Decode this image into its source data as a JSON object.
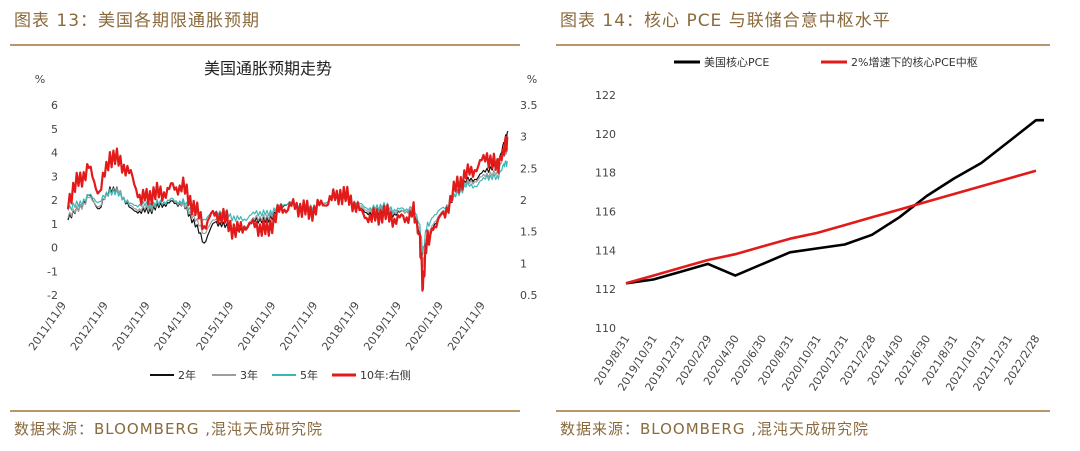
{
  "left": {
    "figure_title": "图表 13：美国各期限通胀预期",
    "source": "数据来源：BLOOMBERG ,混沌天成研究院"
  },
  "right": {
    "figure_title": "图表 14：核心 PCE 与联储合意中枢水平",
    "source": "数据来源：BLOOMBERG ,混沌天成研究院"
  },
  "colors": {
    "y2": "#111111",
    "y3": "#9e9e9e",
    "y5": "#3fb6b6",
    "y10": "#e21a1a",
    "pce": "#000000",
    "target": "#e21a1a",
    "accent": "#b8956a"
  },
  "chart_data": [
    {
      "type": "line",
      "title": "美国通胀预期走势",
      "ylabel": "%",
      "ylabel_right": "%",
      "ylim": [
        -2,
        6
      ],
      "ylim_right": [
        0.5,
        3.5
      ],
      "yticks": [
        "-2",
        "-1",
        "0",
        "1",
        "2",
        "3",
        "4",
        "5",
        "6"
      ],
      "yticks_right": [
        "0.5",
        "1",
        "1.5",
        "2",
        "2.5",
        "3",
        "3.5"
      ],
      "x_labels": [
        "2011/11/9",
        "2012/11/9",
        "2013/11/9",
        "2014/11/9",
        "2015/11/9",
        "2016/11/9",
        "2017/11/9",
        "2018/11/9",
        "2019/11/9",
        "2020/11/9",
        "2021/11/9"
      ],
      "x": [
        2011.75,
        2012.0,
        2012.25,
        2012.5,
        2012.75,
        2013.0,
        2013.25,
        2013.5,
        2013.75,
        2014.0,
        2014.25,
        2014.5,
        2014.75,
        2015.0,
        2015.25,
        2015.5,
        2015.75,
        2016.0,
        2016.25,
        2016.5,
        2016.75,
        2017.0,
        2017.25,
        2017.5,
        2017.75,
        2018.0,
        2018.25,
        2018.5,
        2018.75,
        2019.0,
        2019.25,
        2019.5,
        2019.75,
        2020.0,
        2020.15,
        2020.22,
        2020.3,
        2020.5,
        2020.75,
        2021.0,
        2021.25,
        2021.5,
        2021.75,
        2022.0,
        2022.15,
        2022.25
      ],
      "series": [
        {
          "name": "2年",
          "axis": "left",
          "color_key": "y2",
          "values": [
            1.3,
            1.6,
            2.2,
            1.6,
            2.5,
            2.3,
            1.6,
            1.5,
            1.6,
            1.8,
            1.9,
            1.8,
            1.1,
            0.2,
            1.1,
            0.9,
            0.6,
            0.8,
            1.2,
            1.1,
            1.6,
            1.9,
            1.8,
            1.6,
            1.8,
            2.0,
            2.1,
            1.9,
            1.6,
            1.4,
            1.6,
            1.4,
            1.5,
            1.6,
            0.5,
            -1.5,
            0.2,
            1.0,
            1.5,
            2.2,
            2.8,
            2.9,
            3.3,
            3.4,
            4.4,
            4.9
          ]
        },
        {
          "name": "3年",
          "axis": "left",
          "color_key": "y3",
          "values": [
            1.4,
            1.6,
            2.1,
            1.7,
            2.4,
            2.3,
            1.7,
            1.6,
            1.7,
            1.9,
            2.0,
            1.8,
            1.3,
            0.6,
            1.2,
            1.1,
            0.8,
            0.9,
            1.3,
            1.2,
            1.7,
            1.9,
            1.8,
            1.7,
            1.8,
            2.0,
            2.1,
            1.9,
            1.7,
            1.5,
            1.7,
            1.5,
            1.5,
            1.6,
            0.7,
            -0.8,
            0.4,
            1.1,
            1.6,
            2.2,
            2.7,
            2.8,
            3.1,
            3.1,
            3.9,
            4.2
          ]
        },
        {
          "name": "5年",
          "axis": "left",
          "color_key": "y5",
          "values": [
            1.7,
            1.8,
            2.2,
            1.9,
            2.4,
            2.2,
            1.8,
            1.8,
            1.8,
            1.9,
            2.0,
            1.9,
            1.5,
            1.2,
            1.5,
            1.5,
            1.2,
            1.2,
            1.5,
            1.4,
            1.7,
            1.9,
            1.8,
            1.7,
            1.8,
            2.0,
            2.1,
            2.0,
            1.8,
            1.6,
            1.8,
            1.6,
            1.6,
            1.7,
            0.9,
            -0.3,
            0.8,
            1.4,
            1.7,
            2.2,
            2.6,
            2.6,
            3.0,
            2.9,
            3.5,
            3.6
          ]
        },
        {
          "name": "10年:右侧",
          "axis": "right",
          "color_key": "y10",
          "values": [
            2.0,
            2.3,
            2.5,
            2.1,
            2.7,
            2.6,
            2.4,
            2.0,
            2.1,
            2.1,
            2.2,
            2.2,
            1.9,
            1.6,
            1.8,
            1.7,
            1.5,
            1.6,
            1.6,
            1.5,
            1.8,
            1.9,
            1.9,
            1.8,
            1.9,
            2.0,
            2.1,
            2.0,
            1.8,
            1.7,
            1.8,
            1.7,
            1.7,
            1.8,
            1.4,
            0.6,
            1.3,
            1.6,
            1.8,
            2.2,
            2.4,
            2.5,
            2.7,
            2.5,
            2.8,
            3.0
          ]
        }
      ]
    },
    {
      "type": "line",
      "title": "",
      "ylim": [
        110,
        122
      ],
      "yticks": [
        "110",
        "112",
        "114",
        "116",
        "118",
        "120",
        "122"
      ],
      "categories": [
        "2019/8/31",
        "2019/10/31",
        "2019/12/31",
        "2020/2/29",
        "2020/4/30",
        "2020/6/30",
        "2020/8/31",
        "2020/10/31",
        "2020/12/31",
        "2021/2/28",
        "2021/4/30",
        "2021/6/30",
        "2021/8/31",
        "2021/10/31",
        "2021/12/31",
        "2022/2/28"
      ],
      "series": [
        {
          "name": "美国核心PCE",
          "color_key": "pce",
          "values": [
            112.3,
            112.5,
            112.9,
            113.3,
            112.7,
            113.3,
            113.9,
            114.1,
            114.3,
            114.8,
            115.7,
            116.8,
            117.7,
            118.5,
            119.6,
            120.7
          ]
        },
        {
          "name": "2%增速下的核心PCE中枢",
          "color_key": "target",
          "values": [
            112.3,
            112.7,
            113.1,
            113.5,
            113.8,
            114.2,
            114.6,
            114.9,
            115.3,
            115.7,
            116.1,
            116.5,
            116.9,
            117.3,
            117.7,
            118.1
          ]
        }
      ]
    }
  ]
}
